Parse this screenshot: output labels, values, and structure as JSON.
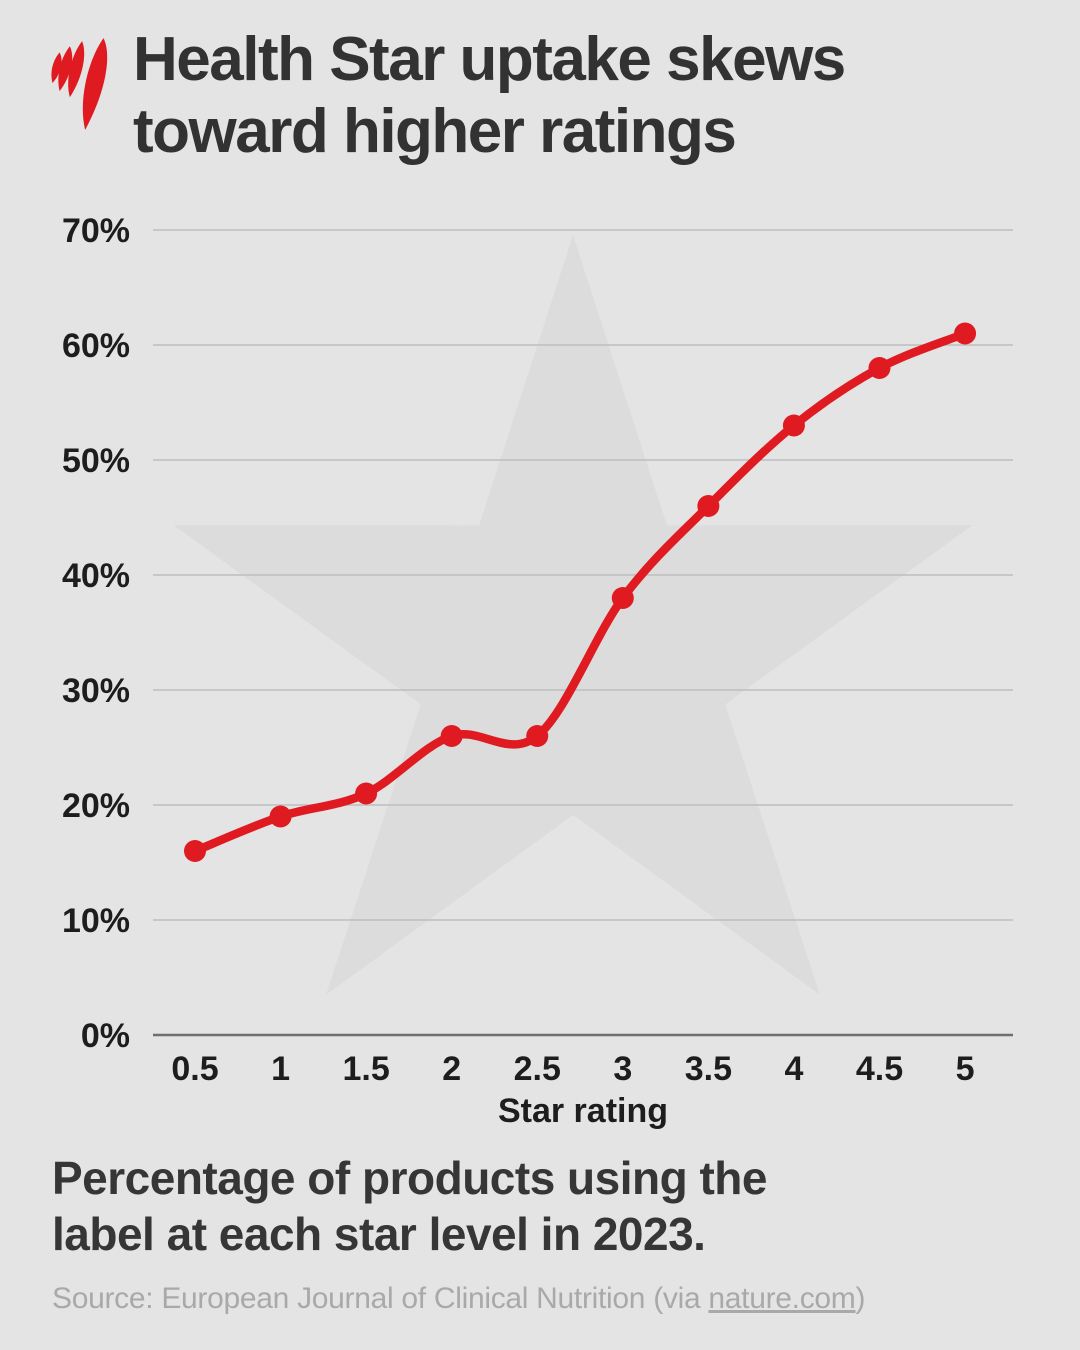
{
  "header": {
    "title_line1": "Health Star uptake skews",
    "title_line2": "toward higher ratings"
  },
  "chart_data": {
    "type": "line",
    "title": "Health Star uptake skews toward higher ratings",
    "categories": [
      "0.5",
      "1",
      "1.5",
      "2",
      "2.5",
      "3",
      "3.5",
      "4",
      "4.5",
      "5"
    ],
    "values": [
      16,
      19,
      21,
      26,
      26,
      38,
      46,
      53,
      58,
      61
    ],
    "unit": "%",
    "xlabel": "Star rating",
    "ylabel": "",
    "ylim": [
      0,
      70
    ],
    "y_ticks": [
      "0%",
      "10%",
      "20%",
      "30%",
      "40%",
      "50%",
      "60%",
      "70%"
    ],
    "y_tick_values": [
      0,
      10,
      20,
      30,
      40,
      50,
      60,
      70
    ],
    "grid": true,
    "legend": "none",
    "line_color": "#df1b21",
    "marker": "circle",
    "watermark": "star"
  },
  "caption": {
    "line1": "Percentage of products using the",
    "line2": "label at each star level in 2023."
  },
  "source": {
    "prefix": "Source: European Journal of Clinical Nutrition (via ",
    "link": "nature.com",
    "suffix": ")"
  },
  "colors": {
    "accent_red": "#df1b21",
    "background": "#e4e4e4",
    "watermark_star": "#dcdcdc",
    "title_text": "#323232",
    "axis_text": "#1d1d1d",
    "gridline": "#bdbdbd",
    "axis_line": "#6e6e6e",
    "source_text": "#a9a9a9"
  }
}
